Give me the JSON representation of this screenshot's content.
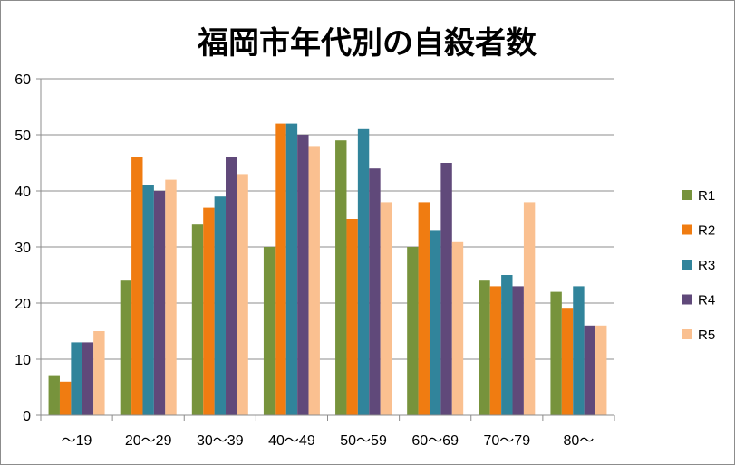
{
  "chart_data": {
    "type": "bar",
    "title": "福岡市年代別の自殺者数",
    "xlabel": "",
    "ylabel": "",
    "ylim": [
      0,
      60
    ],
    "yticks": [
      0,
      10,
      20,
      30,
      40,
      50,
      60
    ],
    "grid": true,
    "legend_position": "right",
    "categories": [
      "～19",
      "20～29",
      "30～39",
      "40～49",
      "50～59",
      "60～69",
      "70～79",
      "80～"
    ],
    "series": [
      {
        "name": "R1",
        "color": "#77933c",
        "values": [
          7,
          24,
          34,
          30,
          49,
          30,
          24,
          22
        ]
      },
      {
        "name": "R2",
        "color": "#f07c11",
        "values": [
          6,
          46,
          37,
          52,
          35,
          38,
          23,
          19
        ]
      },
      {
        "name": "R3",
        "color": "#31849b",
        "values": [
          13,
          41,
          39,
          52,
          51,
          33,
          25,
          23
        ]
      },
      {
        "name": "R4",
        "color": "#60497a",
        "values": [
          13,
          40,
          46,
          50,
          44,
          45,
          23,
          16
        ]
      },
      {
        "name": "R5",
        "color": "#fac090",
        "values": [
          15,
          42,
          43,
          48,
          38,
          31,
          38,
          16
        ]
      }
    ]
  }
}
